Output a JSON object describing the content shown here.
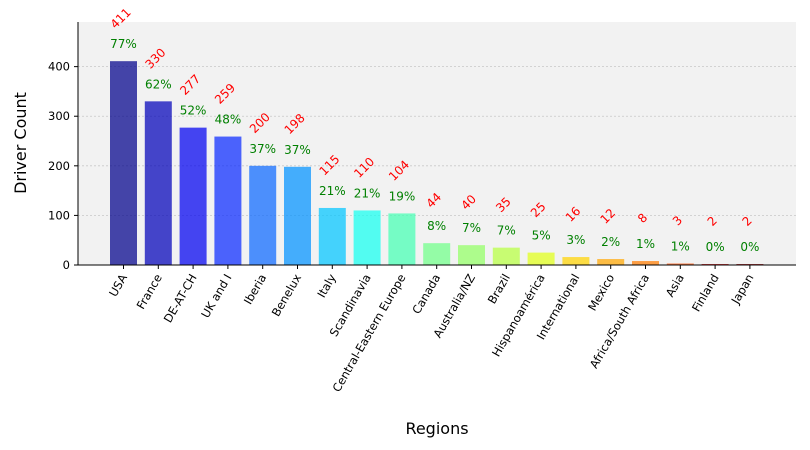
{
  "chart_data": {
    "type": "bar",
    "xlabel": "Regions",
    "ylabel": "Driver Count",
    "ylim": [
      0,
      490
    ],
    "yticks": [
      0,
      100,
      200,
      300,
      400
    ],
    "grid": "horizontal dotted",
    "categories": [
      "USA",
      "France",
      "DE-AT-CH",
      "UK and I",
      "Iberia",
      "Benelux",
      "Italy",
      "Scandinavia",
      "Central-Eastern Europe",
      "Canada",
      "Australia/NZ",
      "Brazil",
      "Hispanoamérica",
      "International",
      "Mexico",
      "Africa/South Africa",
      "Asia",
      "Finland",
      "Japan"
    ],
    "values": [
      411,
      330,
      277,
      259,
      200,
      198,
      115,
      110,
      104,
      44,
      40,
      35,
      25,
      16,
      12,
      8,
      3,
      2,
      2
    ],
    "percent_labels": [
      "77%",
      "62%",
      "52%",
      "48%",
      "37%",
      "37%",
      "21%",
      "21%",
      "19%",
      "8%",
      "7%",
      "7%",
      "5%",
      "3%",
      "2%",
      "1%",
      "1%",
      "0%",
      "0%"
    ],
    "colors": [
      "#00008b",
      "#0000b8",
      "#0000f0",
      "#0a29ff",
      "#0b68ff",
      "#0091ff",
      "#00c5ff",
      "#13fff0",
      "#44ffb3",
      "#6fff88",
      "#92ff64",
      "#b7ff40",
      "#e1ff18",
      "#ffd200",
      "#ffa600",
      "#ff7c00",
      "#ff4d00",
      "#d20000",
      "#a00000"
    ],
    "count_color": "#ff0000",
    "percent_color": "#008000"
  }
}
